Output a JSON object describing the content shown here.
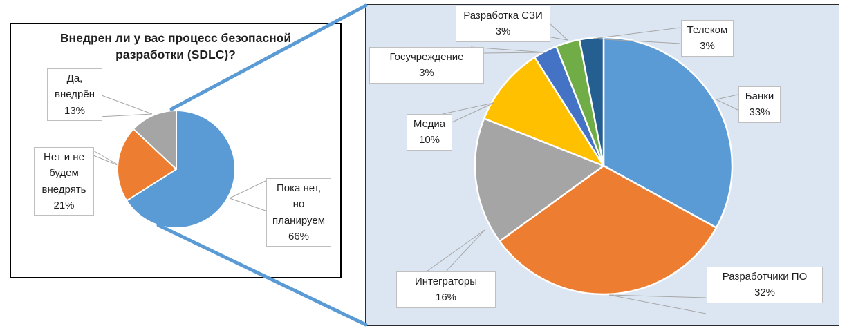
{
  "left_chart": {
    "title": "Внедрен ли у вас процесс безопасной\nразработки (SDLC)?",
    "labels": {
      "yes": "Да,\nвнедрён\n13%",
      "no": "Нет и не\nбудем\nвнедрять\n21%",
      "planned": "Пока нет,\nно\nпланируем\n66%"
    }
  },
  "right_chart": {
    "labels": {
      "szi": "Разработка СЗИ\n3%",
      "telecom": "Телеком\n3%",
      "gov": "Госучреждение\n3%",
      "media": "Медиа\n10%",
      "banks": "Банки\n33%",
      "integrators": "Интеграторы\n16%",
      "devs": "Разработчики  ПО\n32%"
    }
  },
  "chart_data": [
    {
      "type": "pie",
      "title": "Внедрен ли у вас процесс безопасной разработки (SDLC)?",
      "labels": [
        "Пока нет, но планируем",
        "Нет и не будем внедрять",
        "Да, внедрён"
      ],
      "ids": [
        "planned",
        "no",
        "yes"
      ],
      "values": [
        66,
        21,
        13
      ],
      "unit": "%",
      "colors": [
        "#5b9bd5",
        "#ed7d31",
        "#a5a5a5"
      ],
      "start_angle_deg": 0,
      "direction": "clockwise",
      "legend": false,
      "data_labels": "outside callout boxes"
    },
    {
      "type": "pie",
      "labels": [
        "Банки",
        "Разработчики  ПО",
        "Интеграторы",
        "Медиа",
        "Госучреждение",
        "Разработка СЗИ",
        "Телеком"
      ],
      "ids": [
        "banks",
        "devs",
        "integrators",
        "media",
        "gov",
        "szi",
        "telecom"
      ],
      "values": [
        33,
        32,
        16,
        10,
        3,
        3,
        3
      ],
      "unit": "%",
      "colors": [
        "#5b9bd5",
        "#ed7d31",
        "#a5a5a5",
        "#ffc000",
        "#4472c4",
        "#70ad47",
        "#255e91"
      ],
      "start_angle_deg": 0,
      "direction": "clockwise",
      "legend": false,
      "data_labels": "outside callout boxes"
    }
  ],
  "style_colors": {
    "right_panel_background": "#dce6f2",
    "connector_line": "#5b9bd5",
    "leader_line": "#a6a6a6",
    "box_border": "#bfbfbf",
    "frame_border": "#000000"
  }
}
